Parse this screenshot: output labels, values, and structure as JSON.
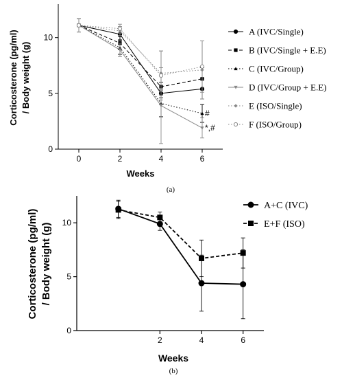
{
  "panels": [
    {
      "label": "(a)"
    },
    {
      "label": "(b)"
    }
  ],
  "chart_data": [
    {
      "type": "line",
      "title": "",
      "xlabel": "Weeks",
      "ylabel": "Corticosterone (pg/ml) / Body weight (g)",
      "ylabel_lines": [
        "Corticosterone (pg/ml)",
        "/ Body weight (g)"
      ],
      "x": [
        0,
        2,
        4,
        6
      ],
      "xlim": [
        -1,
        7
      ],
      "ylim": [
        0,
        13
      ],
      "yticks": [
        0,
        5,
        10
      ],
      "xticks": [
        0,
        2,
        4,
        6
      ],
      "grid": false,
      "legend_position": "right",
      "series": [
        {
          "name": "A (IVC/Single)",
          "values": [
            11.1,
            10.3,
            5.0,
            5.4
          ],
          "err": [
            0.6,
            0.5,
            1.0,
            0.9
          ],
          "marker": "circle",
          "line": "solid",
          "color": "#000000"
        },
        {
          "name": "B (IVC/Single + E.E)",
          "values": [
            11.1,
            9.5,
            5.6,
            6.3
          ],
          "err": [
            0.6,
            0.6,
            1.0,
            1.0
          ],
          "marker": "square",
          "line": "dashed",
          "color": "#000000"
        },
        {
          "name": "C (IVC/Group)",
          "values": [
            11.1,
            9.1,
            4.1,
            3.2
          ],
          "err": [
            0.6,
            0.6,
            1.2,
            0.8
          ],
          "marker": "triangle",
          "line": "dotted",
          "color": "#000000"
        },
        {
          "name": "D (IVC/Group + E.E)",
          "values": [
            11.1,
            8.9,
            3.9,
            1.9
          ],
          "err": [
            0.6,
            0.6,
            3.4,
            0.9
          ],
          "marker": "down-triangle",
          "line": "solid",
          "color": "#888888"
        },
        {
          "name": "E (ISO/Single)",
          "values": [
            11.1,
            10.6,
            6.8,
            7.1
          ],
          "err": [
            0.6,
            0.4,
            2.0,
            2.6
          ],
          "marker": "diamond",
          "line": "dotted",
          "color": "#888888"
        },
        {
          "name": "F (ISO/Group)",
          "values": [
            11.1,
            10.8,
            6.6,
            7.4
          ],
          "err": [
            0.6,
            0.4,
            2.2,
            2.3
          ],
          "marker": "open-circle",
          "line": "dotted",
          "color": "#888888"
        }
      ],
      "annotations": [
        {
          "text": "#",
          "x": 6,
          "y": 3.2
        },
        {
          "text": "*,#",
          "x": 6,
          "y": 1.9
        }
      ]
    },
    {
      "type": "line",
      "title": "",
      "xlabel": "Weeks",
      "ylabel": "Corticosterone (pg/ml) / Body weight (g)",
      "ylabel_lines": [
        "Corticosterone (pg/ml)",
        "/ Body weight (g)"
      ],
      "x": [
        0,
        2,
        4,
        6
      ],
      "xlim": [
        -2,
        7
      ],
      "ylim": [
        0,
        12.5
      ],
      "yticks": [
        0,
        5,
        10
      ],
      "xticks": [
        2,
        4,
        6
      ],
      "grid": false,
      "legend_position": "top-right",
      "series": [
        {
          "name": "A+C (IVC)",
          "values": [
            11.3,
            9.9,
            4.4,
            4.3
          ],
          "err": [
            0.8,
            0.6,
            2.6,
            3.2
          ],
          "marker": "circle",
          "line": "solid",
          "color": "#000000"
        },
        {
          "name": "E+F (ISO)",
          "values": [
            11.2,
            10.5,
            6.7,
            7.2
          ],
          "err": [
            0.8,
            0.5,
            1.7,
            1.4
          ],
          "marker": "square",
          "line": "dashed",
          "color": "#000000"
        }
      ]
    }
  ]
}
